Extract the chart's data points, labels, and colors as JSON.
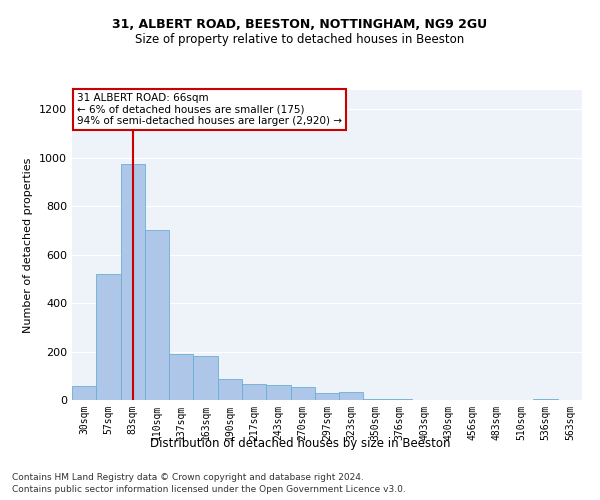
{
  "title1": "31, ALBERT ROAD, BEESTON, NOTTINGHAM, NG9 2GU",
  "title2": "Size of property relative to detached houses in Beeston",
  "xlabel": "Distribution of detached houses by size in Beeston",
  "ylabel": "Number of detached properties",
  "footnote1": "Contains HM Land Registry data © Crown copyright and database right 2024.",
  "footnote2": "Contains public sector information licensed under the Open Government Licence v3.0.",
  "bar_color": "#aec6e8",
  "bar_edge_color": "#6aaed6",
  "categories": [
    "30sqm",
    "57sqm",
    "83sqm",
    "110sqm",
    "137sqm",
    "163sqm",
    "190sqm",
    "217sqm",
    "243sqm",
    "270sqm",
    "297sqm",
    "323sqm",
    "350sqm",
    "376sqm",
    "403sqm",
    "430sqm",
    "456sqm",
    "483sqm",
    "510sqm",
    "536sqm",
    "563sqm"
  ],
  "values": [
    57,
    520,
    975,
    700,
    190,
    180,
    85,
    65,
    60,
    52,
    28,
    32,
    4,
    4,
    2,
    1,
    1,
    1,
    1,
    4,
    1
  ],
  "ylim": [
    0,
    1280
  ],
  "yticks": [
    0,
    200,
    400,
    600,
    800,
    1000,
    1200
  ],
  "property_line_x": 2.0,
  "annotation_text": "31 ALBERT ROAD: 66sqm\n← 6% of detached houses are smaller (175)\n94% of semi-detached houses are larger (2,920) →",
  "annotation_box_color": "#ffffff",
  "annotation_edge_color": "#cc0000",
  "line_color": "#cc0000",
  "background_color": "#eef2f9",
  "grid_color": "#ffffff",
  "title_fontsize": 9,
  "subtitle_fontsize": 8.5,
  "ylabel_fontsize": 8,
  "xlabel_fontsize": 8.5,
  "tick_fontsize": 7,
  "annot_fontsize": 7.5,
  "footnote_fontsize": 6.5
}
